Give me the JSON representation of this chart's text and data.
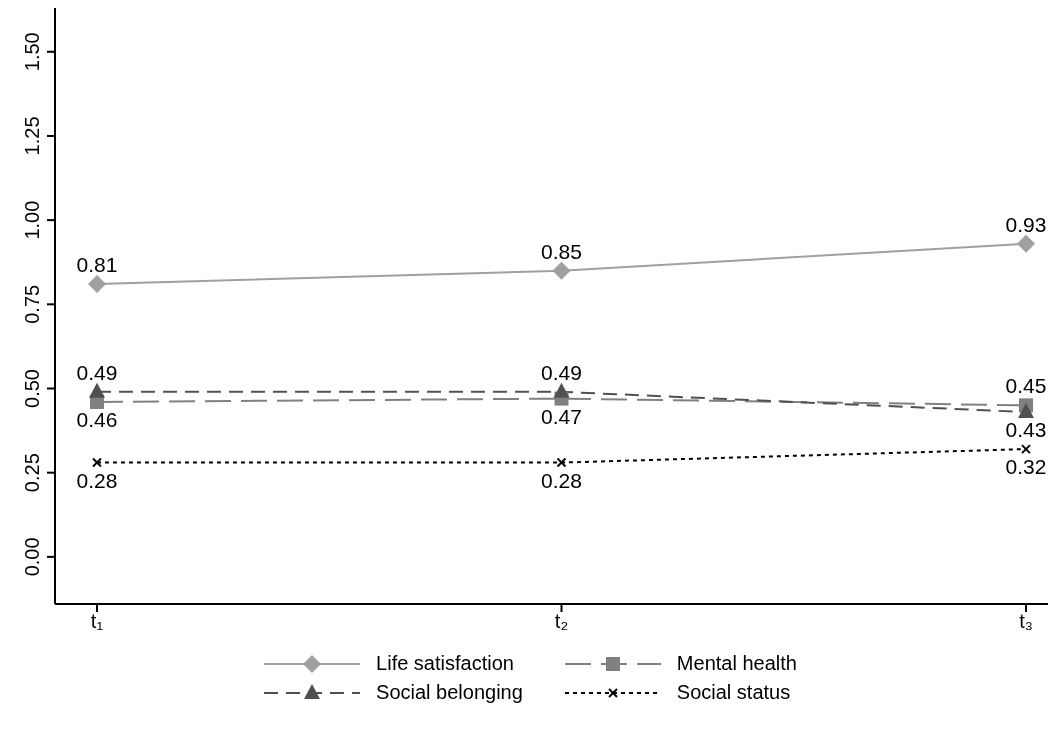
{
  "chart_data": {
    "type": "line",
    "categories": [
      "t₁",
      "t₂",
      "t₃"
    ],
    "series": [
      {
        "name": "Life satisfaction",
        "color": "#a0a0a0",
        "values": [
          0.81,
          0.85,
          0.93
        ],
        "marker": "diamond",
        "line_style": "solid"
      },
      {
        "name": "Mental health",
        "color": "#808080",
        "values": [
          0.46,
          0.47,
          0.45
        ],
        "marker": "square",
        "line_style": "longdash"
      },
      {
        "name": "Social belonging",
        "color": "#505050",
        "values": [
          0.49,
          0.49,
          0.43
        ],
        "marker": "triangle",
        "line_style": "dashed"
      },
      {
        "name": "Social status",
        "color": "#000000",
        "values": [
          0.28,
          0.28,
          0.32
        ],
        "marker": "cross",
        "line_style": "dotted"
      }
    ],
    "ylim": [
      -0.14,
      1.63
    ],
    "yticks": [
      "0.00",
      "0.25",
      "0.50",
      "0.75",
      "1.00",
      "1.25",
      "1.50"
    ],
    "data_labels": true,
    "grid": false,
    "legend": "bottom"
  }
}
